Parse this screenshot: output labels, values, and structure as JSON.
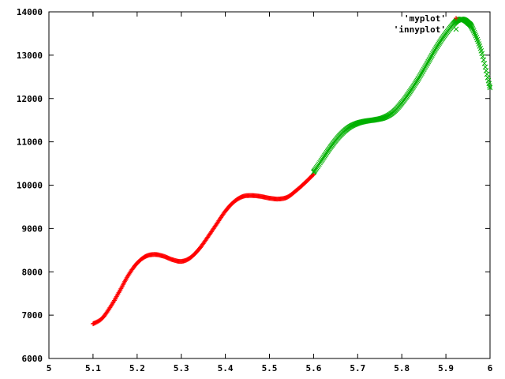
{
  "chart_data": {
    "type": "scatter",
    "title": "",
    "xlabel": "",
    "ylabel": "",
    "xlim": [
      5,
      6
    ],
    "ylim": [
      6000,
      14000
    ],
    "x_ticks": [
      "5",
      "5.1",
      "5.2",
      "5.3",
      "5.4",
      "5.5",
      "5.6",
      "5.7",
      "5.8",
      "5.9",
      "6"
    ],
    "y_ticks": [
      "6000",
      "7000",
      "8000",
      "9000",
      "10000",
      "11000",
      "12000",
      "13000",
      "14000"
    ],
    "grid": false,
    "legend_position": "top-right",
    "series": [
      {
        "name": "'myplot'",
        "color": "#ff0000",
        "marker": "plus",
        "x": [
          5.1,
          5.12,
          5.14,
          5.16,
          5.18,
          5.2,
          5.22,
          5.24,
          5.26,
          5.28,
          5.3,
          5.32,
          5.34,
          5.36,
          5.38,
          5.4,
          5.42,
          5.44,
          5.46,
          5.48,
          5.5,
          5.52,
          5.54,
          5.56,
          5.58,
          5.6
        ],
        "y": [
          6800,
          6920,
          7200,
          7550,
          7920,
          8200,
          8360,
          8400,
          8360,
          8280,
          8240,
          8320,
          8520,
          8800,
          9100,
          9400,
          9620,
          9740,
          9760,
          9740,
          9700,
          9680,
          9720,
          9870,
          10050,
          10250
        ]
      },
      {
        "name": "'innyplot'",
        "color": "#00b000",
        "marker": "cross",
        "x": [
          5.6,
          5.62,
          5.64,
          5.66,
          5.68,
          5.7,
          5.72,
          5.74,
          5.76,
          5.78,
          5.8,
          5.82,
          5.84,
          5.86,
          5.88,
          5.9,
          5.92,
          5.93,
          5.94,
          5.95,
          5.96,
          5.98,
          6.0
        ],
        "y": [
          10300,
          10600,
          10900,
          11150,
          11330,
          11430,
          11480,
          11510,
          11560,
          11680,
          11900,
          12180,
          12500,
          12850,
          13200,
          13500,
          13750,
          13820,
          13820,
          13750,
          13620,
          13100,
          12250
        ]
      }
    ]
  }
}
